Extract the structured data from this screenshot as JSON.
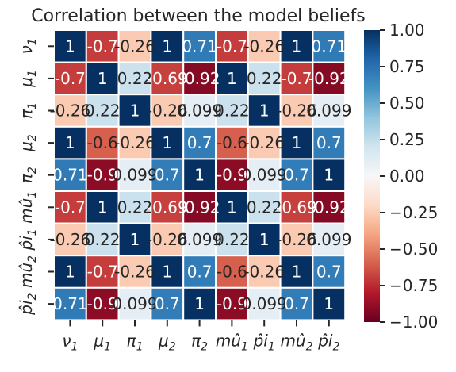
{
  "chart_data": {
    "type": "heatmap",
    "title": "Correlation between the model beliefs",
    "x_labels": [
      "ν1",
      "μ1",
      "π1",
      "μ2",
      "π2",
      "mû1",
      "p̂i1",
      "mû2",
      "p̂i2"
    ],
    "y_labels": [
      "ν1",
      "μ1",
      "π1",
      "μ2",
      "π2",
      "mû1",
      "p̂i1",
      "mû2",
      "p̂i2"
    ],
    "x_tick_labels": [
      {
        "base": "ν",
        "sub": "1"
      },
      {
        "base": "μ",
        "sub": "1"
      },
      {
        "base": "π",
        "sub": "1"
      },
      {
        "base": "μ",
        "sub": "2"
      },
      {
        "base": "π",
        "sub": "2"
      },
      {
        "base": "mû",
        "sub": "1"
      },
      {
        "base": "p̂i",
        "sub": "1"
      },
      {
        "base": "mû",
        "sub": "2"
      },
      {
        "base": "p̂i",
        "sub": "2"
      }
    ],
    "y_tick_labels": [
      {
        "base": "ν",
        "sub": "1"
      },
      {
        "base": "μ",
        "sub": "1"
      },
      {
        "base": "π",
        "sub": "1"
      },
      {
        "base": "μ",
        "sub": "2"
      },
      {
        "base": "π",
        "sub": "2"
      },
      {
        "base": "mû",
        "sub": "1"
      },
      {
        "base": "p̂i",
        "sub": "1"
      },
      {
        "base": "mû",
        "sub": "2"
      },
      {
        "base": "p̂i",
        "sub": "2"
      }
    ],
    "values": [
      [
        1,
        -0.7,
        -0.26,
        1,
        0.71,
        -0.7,
        -0.26,
        1,
        0.71
      ],
      [
        -0.7,
        1,
        0.22,
        -0.69,
        -0.92,
        1,
        0.22,
        -0.7,
        -0.92
      ],
      [
        -0.26,
        0.22,
        1,
        -0.26,
        0.099,
        0.22,
        1,
        -0.26,
        0.099
      ],
      [
        1,
        -0.6,
        -0.26,
        1,
        0.7,
        -0.6,
        -0.26,
        1,
        0.7
      ],
      [
        0.71,
        -0.9,
        0.099,
        0.7,
        1,
        -0.9,
        0.099,
        0.7,
        1
      ],
      [
        -0.7,
        1,
        0.22,
        -0.69,
        -0.92,
        1,
        0.22,
        -0.69,
        -0.92
      ],
      [
        -0.26,
        0.22,
        1,
        -0.26,
        0.099,
        0.22,
        1,
        -0.26,
        0.099
      ],
      [
        1,
        -0.7,
        -0.26,
        1,
        0.7,
        -0.6,
        -0.26,
        1,
        0.7
      ],
      [
        0.71,
        -0.9,
        0.099,
        0.7,
        1,
        -0.9,
        0.099,
        0.7,
        1
      ]
    ],
    "annotations": [
      [
        "1",
        "-0.7",
        "-0.26",
        "1",
        "0.71",
        "-0.7",
        "-0.26",
        "1",
        "0.71"
      ],
      [
        "-0.7",
        "1",
        "0.22",
        "-0.69",
        "-0.92",
        "1",
        "0.22",
        "-0.7",
        "-0.92"
      ],
      [
        "-0.26",
        "0.22",
        "1",
        "-0.26",
        "0.099",
        "0.22",
        "1",
        "-0.26",
        "0.099"
      ],
      [
        "1",
        "-0.6",
        "-0.26",
        "1",
        "0.7",
        "-0.6",
        "-0.26",
        "1",
        "0.7"
      ],
      [
        "0.71",
        "-0.9",
        "0.099",
        "0.7",
        "1",
        "-0.9",
        "0.099",
        "0.7",
        "1"
      ],
      [
        "-0.7",
        "1",
        "0.22",
        "-0.69",
        "-0.92",
        "1",
        "0.22",
        "-0.69",
        "-0.92"
      ],
      [
        "-0.26",
        "0.22",
        "1",
        "-0.26",
        "0.099",
        "0.22",
        "1",
        "-0.26",
        "0.099"
      ],
      [
        "1",
        "-0.7",
        "-0.26",
        "1",
        "0.7",
        "-0.6",
        "-0.26",
        "1",
        "0.7"
      ],
      [
        "0.71",
        "-0.9",
        "0.099",
        "0.7",
        "1",
        "-0.9",
        "0.099",
        "0.7",
        "1"
      ]
    ],
    "vmin": -1.0,
    "vmax": 1.0,
    "colormap": "RdBu",
    "colorbar_ticks": [
      "1.00",
      "0.75",
      "0.50",
      "0.25",
      "0.00",
      "−0.25",
      "−0.50",
      "−0.75",
      "−1.00"
    ],
    "colorbar_tick_values": [
      1.0,
      0.75,
      0.5,
      0.25,
      0.0,
      -0.25,
      -0.5,
      -0.75,
      -1.0
    ],
    "cell_border_color": "#ffffff",
    "grid": false
  }
}
